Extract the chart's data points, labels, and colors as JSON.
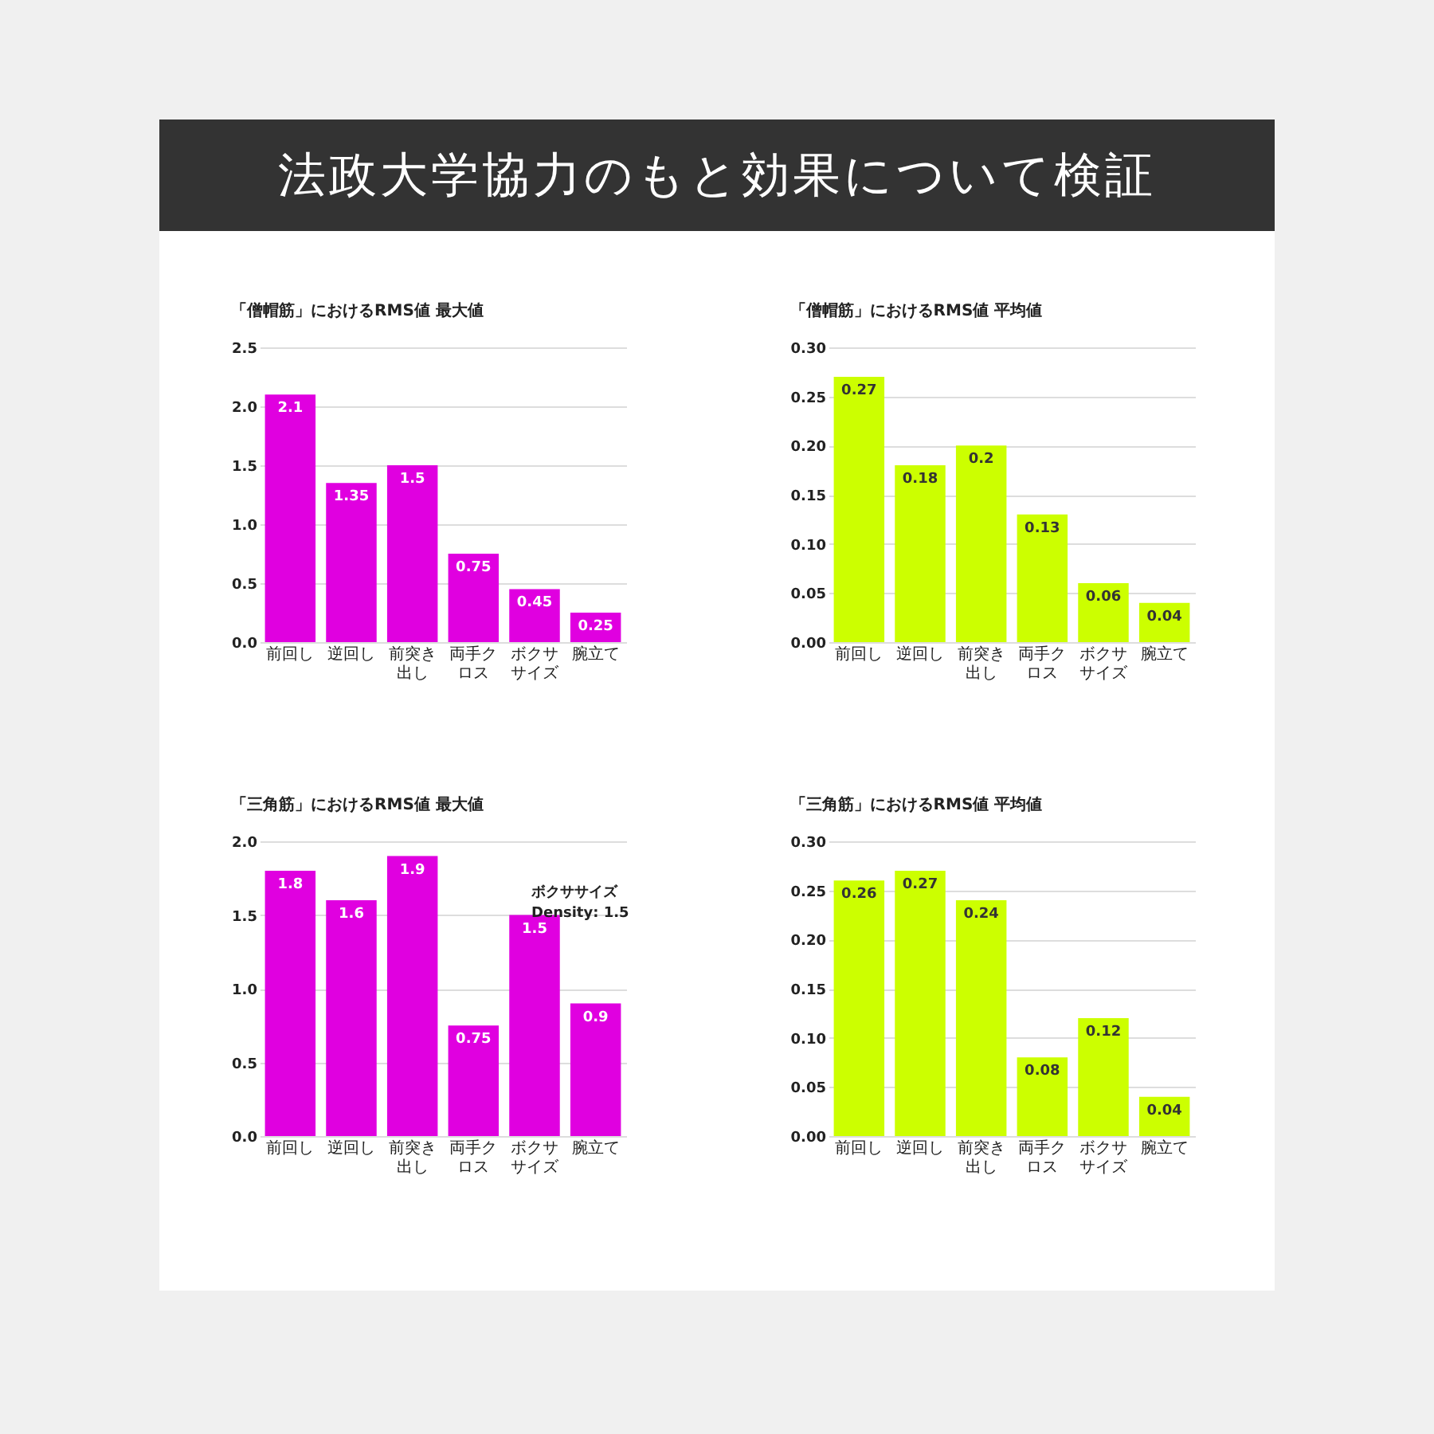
{
  "chart_data": [
    {
      "type": "other",
      "title": "法政大学協力のもと効果について検証"
    },
    {
      "type": "bar",
      "title": "「僧帽筋」におけるRMS値 最大値",
      "categories": [
        "前回し",
        "逆回し",
        "前突き出し",
        "両手クロス",
        "ボクササイズ",
        "腕立て"
      ],
      "values": [
        2.1,
        1.35,
        1.5,
        0.75,
        0.45,
        0.25
      ],
      "color": "#e000e0",
      "ylim": [
        0,
        2.5
      ],
      "yticks": [
        {
          "value": 0,
          "label": "0.0"
        },
        0.5,
        {
          "value": 1,
          "label": "1.0"
        },
        1.5,
        {
          "value": 2,
          "label": "2.0"
        },
        2.5
      ],
      "grid": "y",
      "data_labels": true
    },
    {
      "type": "bar",
      "title": "「僧帽筋」におけるRMS値 平均値",
      "categories": [
        "前回し",
        "逆回し",
        "前突き出し",
        "両手クロス",
        "ボクササイズ",
        "腕立て"
      ],
      "values": [
        0.27,
        0.18,
        0.2,
        0.13,
        0.06,
        0.04
      ],
      "color": "#ccff00",
      "ylim": [
        0,
        0.3
      ],
      "yticks": [
        {
          "value": 0,
          "label": "0.00"
        },
        0.05,
        {
          "value": 0.1,
          "label": "0.10"
        },
        0.15,
        {
          "value": 0.2,
          "label": "0.20"
        },
        0.25,
        {
          "value": 0.3,
          "label": "0.30"
        }
      ],
      "grid": "y",
      "data_labels": true
    },
    {
      "type": "bar",
      "title": "「三角筋」におけるRMS値 最大値",
      "categories": [
        "前回し",
        "逆回し",
        "前突き出し",
        "両手クロス",
        "ボクササイズ",
        "腕立て"
      ],
      "values": [
        1.8,
        1.6,
        1.9,
        0.75,
        1.5,
        0.9
      ],
      "color": "#e000e0",
      "ylim": [
        0,
        2.0
      ],
      "yticks": [
        {
          "value": 0,
          "label": "0.0"
        },
        0.5,
        {
          "value": 1,
          "label": "1.0"
        },
        1.5,
        {
          "value": 2,
          "label": "2.0"
        }
      ],
      "grid": "y",
      "data_labels": true,
      "annotations": [
        {
          "text": "ボクササイズ\nDensity: 1.5",
          "x": "ボクササイズ",
          "y": 1.5
        }
      ]
    },
    {
      "type": "bar",
      "title": "「三角筋」におけるRMS値 平均値",
      "categories": [
        "前回し",
        "逆回し",
        "前突き出し",
        "両手クロス",
        "ボクササイズ",
        "腕立て"
      ],
      "values": [
        0.26,
        0.27,
        0.24,
        0.08,
        0.12,
        0.04
      ],
      "color": "#ccff00",
      "ylim": [
        0,
        0.3
      ],
      "yticks": [
        {
          "value": 0,
          "label": "0.00"
        },
        0.05,
        {
          "value": 0.1,
          "label": "0.10"
        },
        0.15,
        {
          "value": 0.2,
          "label": "0.20"
        },
        0.25,
        {
          "value": 0.3,
          "label": "0.30"
        }
      ],
      "grid": "y",
      "data_labels": true
    }
  ]
}
